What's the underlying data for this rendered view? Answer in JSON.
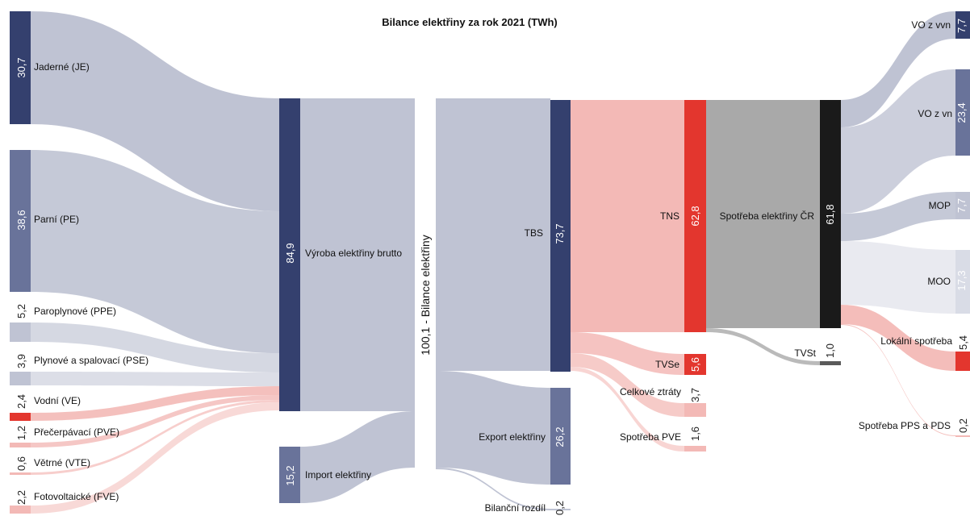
{
  "title": "Bilance elektřiny za rok 2021 (TWh)",
  "colors": {
    "navy": "#34406e",
    "slate": "#69739a",
    "pale_navy": "#bfc3d3",
    "red": "#e3362e",
    "pale_red": "#f3b9b6",
    "black": "#1a1a1a",
    "gray": "#a9a9a9"
  },
  "sources": [
    {
      "id": "je",
      "label": "Jaderné (JE)",
      "value": "30,7"
    },
    {
      "id": "pe",
      "label": "Parní (PE)",
      "value": "38,6"
    },
    {
      "id": "ppe",
      "label": "Paroplynové (PPE)",
      "value": "5,2"
    },
    {
      "id": "pse",
      "label": "Plynové a spalovací (PSE)",
      "value": "3,9"
    },
    {
      "id": "ve",
      "label": "Vodní (VE)",
      "value": "2,4"
    },
    {
      "id": "pve",
      "label": "Přečerpávací (PVE)",
      "value": "1,2"
    },
    {
      "id": "vte",
      "label": "Větrné (VTE)",
      "value": "0,6"
    },
    {
      "id": "fve",
      "label": "Fotovoltaické (FVE)",
      "value": "2,2"
    }
  ],
  "nodes": {
    "vyroba": {
      "label": "Výroba elektřiny brutto",
      "value": "84,9"
    },
    "import": {
      "label": "Import elektřiny",
      "value": "15,2"
    },
    "bilance": {
      "label": "100,1 - Bilance elektřiny"
    },
    "tbs": {
      "label": "TBS",
      "value": "73,7"
    },
    "export": {
      "label": "Export elektřiny",
      "value": "26,2"
    },
    "bilancni": {
      "label": "Bilanční rozdíl",
      "value": "0,2"
    },
    "tns": {
      "label": "TNS",
      "value": "62,8"
    },
    "tvse": {
      "label": "TVSe",
      "value": "5,6"
    },
    "ztraty": {
      "label": "Celkové ztráty",
      "value": "3,7"
    },
    "spotreba_pve": {
      "label": "Spotřeba PVE",
      "value": "1,6"
    },
    "spotreba_cr": {
      "label": "Spotřeba elektřiny ČR",
      "value": "61,8"
    },
    "tvst": {
      "label": "TVSt",
      "value": "1,0"
    }
  },
  "consumers": [
    {
      "id": "vo-vvn",
      "label": "VO z vvn",
      "value": "7,7"
    },
    {
      "id": "vo-vn",
      "label": "VO z vn",
      "value": "23,4"
    },
    {
      "id": "mop",
      "label": "MOP",
      "value": "7,7"
    },
    {
      "id": "moo",
      "label": "MOO",
      "value": "17,3"
    },
    {
      "id": "lokalni",
      "label": "Lokální spotřeba",
      "value": "5,4"
    },
    {
      "id": "pps",
      "label": "Spotřeba PPS a PDS",
      "value": "0,2"
    }
  ]
}
